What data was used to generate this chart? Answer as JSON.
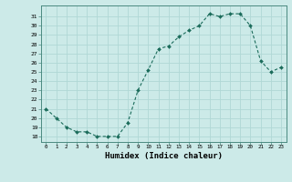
{
  "x": [
    0,
    1,
    2,
    3,
    4,
    5,
    6,
    7,
    8,
    9,
    10,
    11,
    12,
    13,
    14,
    15,
    16,
    17,
    18,
    19,
    20,
    21,
    22,
    23
  ],
  "y": [
    21,
    20,
    19,
    18.5,
    18.5,
    18,
    18,
    18,
    19.5,
    23,
    25.2,
    27.5,
    27.8,
    28.8,
    29.5,
    30,
    31.3,
    31,
    31.3,
    31.3,
    30,
    26.2,
    25,
    25.5
  ],
  "line_color": "#1a6b5a",
  "marker_color": "#1a6b5a",
  "bg_color": "#cceae8",
  "grid_color": "#b0d8d5",
  "xlabel": "Humidex (Indice chaleur)",
  "xlabel_fontsize": 6.5,
  "xtick_labels": [
    "0",
    "1",
    "2",
    "3",
    "4",
    "5",
    "6",
    "7",
    "8",
    "9",
    "10",
    "11",
    "12",
    "13",
    "14",
    "15",
    "16",
    "17",
    "18",
    "19",
    "20",
    "21",
    "22",
    "23"
  ],
  "ytick_min": 18,
  "ytick_max": 31,
  "xlim": [
    -0.5,
    23.5
  ],
  "ylim": [
    17.4,
    32.2
  ]
}
